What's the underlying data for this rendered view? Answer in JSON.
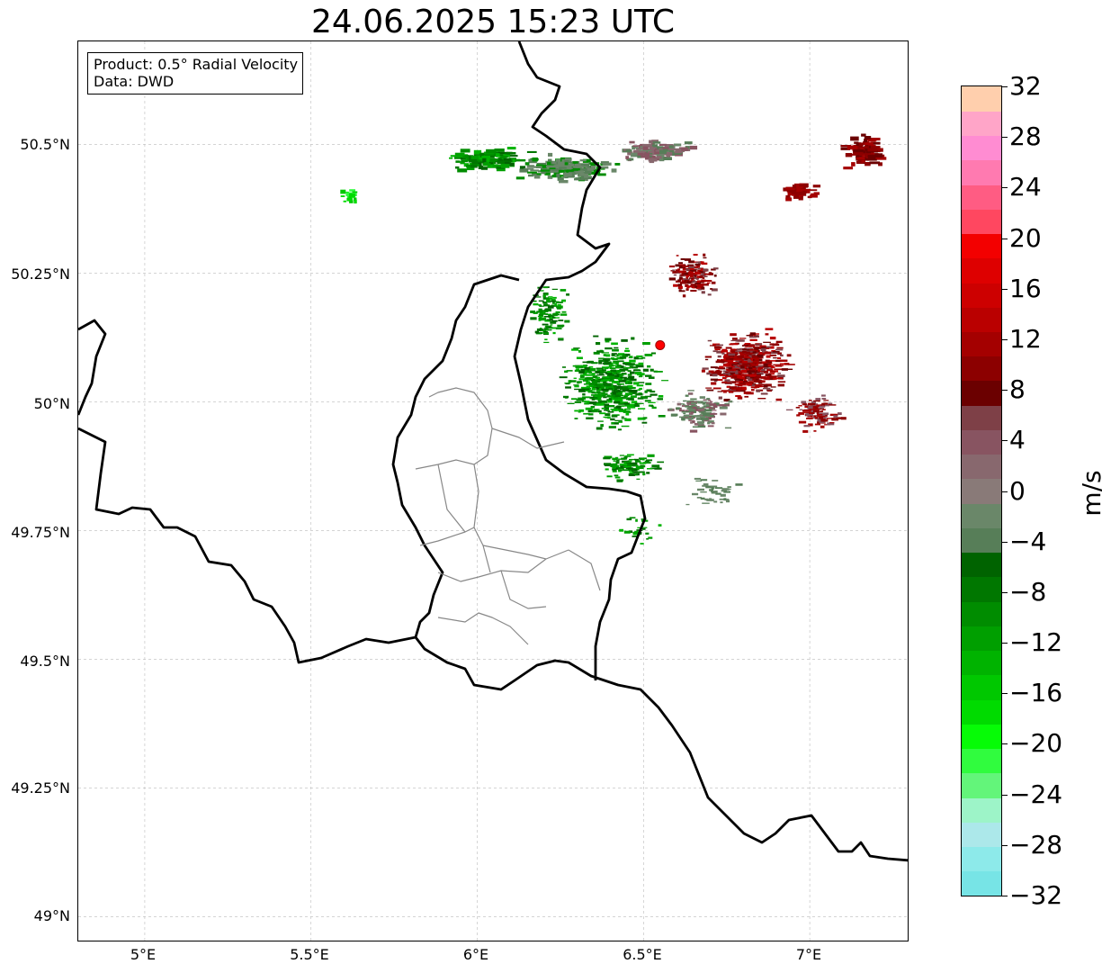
{
  "title": "24.06.2025 15:23 UTC",
  "info_box": {
    "product": "Product: 0.5° Radial Velocity",
    "data": "Data: DWD"
  },
  "axes": {
    "lat_ticks": [
      "50.5°N",
      "50.25°N",
      "50°N",
      "49.75°N",
      "49.5°N",
      "49.25°N",
      "49°N"
    ],
    "lon_ticks": [
      "5°E",
      "5.5°E",
      "6°E",
      "6.5°E",
      "7°E"
    ],
    "lat_range": [
      48.95,
      50.7
    ],
    "lon_range": [
      4.8,
      7.3
    ],
    "grid": "dashed, light gray"
  },
  "radar_site": {
    "lon": 6.55,
    "lat": 50.11,
    "color": "#ff0000"
  },
  "colorbar": {
    "unit": "m/s",
    "min": -32,
    "max": 32,
    "tick_labels": [
      "32",
      "28",
      "24",
      "20",
      "16",
      "12",
      "8",
      "4",
      "0",
      "−4",
      "−8",
      "−12",
      "−16",
      "−20",
      "−24",
      "−28",
      "−32"
    ],
    "colors": [
      "#77e4e6",
      "#8deaea",
      "#ace8ea",
      "#9df4c8",
      "#63f57a",
      "#30fc3e",
      "#06fc06",
      "#00db00",
      "#00c800",
      "#00b300",
      "#009f00",
      "#008c00",
      "#007700",
      "#006300",
      "#577e58",
      "#6a8769",
      "#897a78",
      "#88686e",
      "#885461",
      "#7e4047",
      "#6b0000",
      "#8c0000",
      "#a40000",
      "#ba0000",
      "#cd0000",
      "#de0000",
      "#f30000",
      "#ff4760",
      "#ff5c83",
      "#ff7ab0",
      "#ff8cd2",
      "#ffa5c8",
      "#ffcfad"
    ]
  },
  "chart_data": {
    "type": "heatmap",
    "title": "24.06.2025 15:23 UTC",
    "xlabel": "",
    "ylabel": "",
    "xlim": [
      4.8,
      7.3
    ],
    "ylim": [
      48.95,
      50.7
    ],
    "colorbar_label": "m/s",
    "colorbar_range": [
      -32,
      32
    ],
    "radar_site": {
      "lon": 6.55,
      "lat": 50.11
    },
    "echo_regions": [
      {
        "name": "northern green band",
        "lon": 5.95,
        "lat": 50.47,
        "velocity": -9
      },
      {
        "name": "western green cluster",
        "lon": 6.27,
        "lat": 50.06,
        "velocity": -9
      },
      {
        "name": "eastern red cluster",
        "lon": 6.85,
        "lat": 50.1,
        "velocity": 10
      },
      {
        "name": "northeast red streaks",
        "lon": 7.15,
        "lat": 50.45,
        "velocity": 9
      },
      {
        "name": "northern gray-red band",
        "lon": 6.4,
        "lat": 50.5,
        "velocity": 4
      }
    ]
  }
}
